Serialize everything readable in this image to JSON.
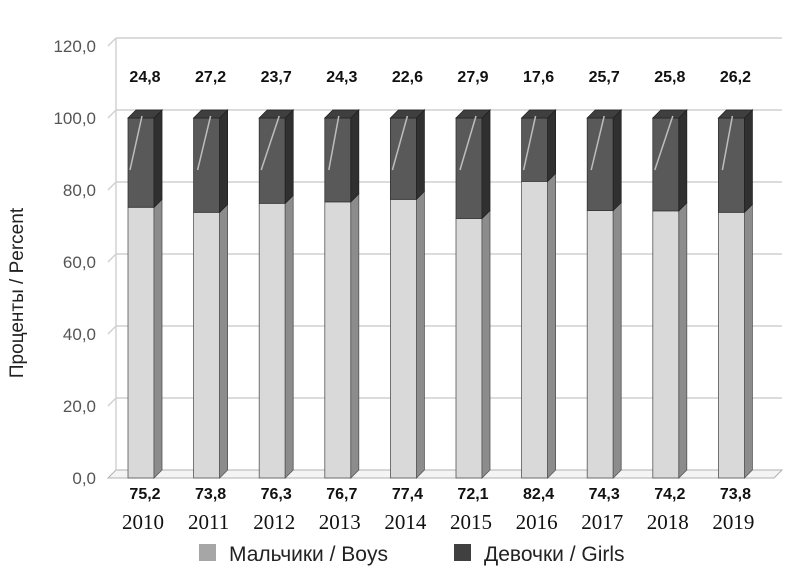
{
  "chart_data": {
    "type": "bar",
    "stacked": true,
    "three_d": true,
    "categories": [
      "2010",
      "2011",
      "2012",
      "2013",
      "2014",
      "2015",
      "2016",
      "2017",
      "2018",
      "2019"
    ],
    "series": [
      {
        "name": "Мальчики / Boys",
        "values": [
          75.2,
          73.8,
          76.3,
          76.7,
          77.4,
          72.1,
          82.4,
          74.3,
          74.2,
          73.8
        ]
      },
      {
        "name": "Девочки / Girls",
        "values": [
          24.8,
          27.2,
          23.7,
          24.3,
          22.6,
          27.9,
          17.6,
          25.7,
          25.8,
          26.2
        ]
      }
    ],
    "boys_labels": [
      "75,2",
      "73,8",
      "76,3",
      "76,7",
      "77,4",
      "72,1",
      "82,4",
      "74,3",
      "74,2",
      "73,8"
    ],
    "girls_labels": [
      "24,8",
      "27,2",
      "23,7",
      "24,3",
      "22,6",
      "27,9",
      "17,6",
      "25,7",
      "25,8",
      "26,2"
    ],
    "ylabel": "Проценты / Percent",
    "xlabel": "",
    "ylim": [
      0,
      120
    ],
    "y_ticks": [
      0,
      20,
      40,
      60,
      80,
      100,
      120
    ],
    "y_tick_labels": [
      "0,0",
      "20,0",
      "40,0",
      "60,0",
      "80,0",
      "100,0",
      "120,0"
    ],
    "grid": true,
    "legend_position": "bottom",
    "colors": {
      "boys": "#d9d9d9",
      "boys_side": "#8c8c8c",
      "girls": "#595959",
      "girls_side": "#303030",
      "girls_top": "#3f3f3f",
      "legend_boys": "#a6a6a6",
      "legend_girls": "#404040",
      "grid": "#d0d0d0",
      "axis": "#b0b0b0"
    }
  }
}
